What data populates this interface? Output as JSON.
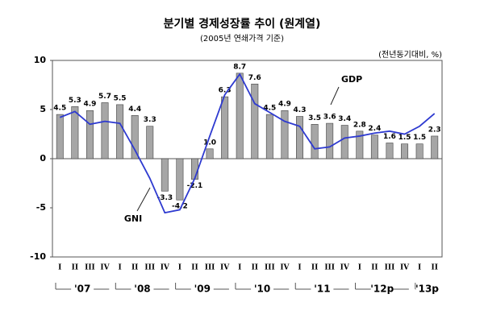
{
  "chart_data": {
    "type": "bar",
    "title": "분기별 경제성장률 추이 (원계열)",
    "subtitle": "(2005년 연쇄가격 기준)",
    "unit_label": "(전년동기대비, %)",
    "categories": [
      "I",
      "II",
      "III",
      "IV",
      "I",
      "II",
      "III",
      "IV",
      "I",
      "II",
      "III",
      "IV",
      "I",
      "II",
      "III",
      "IV",
      "I",
      "II",
      "III",
      "IV",
      "I",
      "II",
      "III",
      "IV",
      "I",
      "II"
    ],
    "groups": [
      {
        "label": "'07",
        "count": 4
      },
      {
        "label": "'08",
        "count": 4
      },
      {
        "label": "'09",
        "count": 4
      },
      {
        "label": "'10",
        "count": 4
      },
      {
        "label": "'11",
        "count": 4
      },
      {
        "label": "'12p",
        "count": 4
      },
      {
        "label": "'13p",
        "count": 2
      }
    ],
    "series": [
      {
        "name": "GDP",
        "type": "bar",
        "color": "#a6a6a6",
        "values": [
          4.5,
          5.3,
          4.9,
          5.7,
          5.5,
          4.4,
          3.3,
          -3.3,
          -4.2,
          -2.1,
          1.0,
          6.3,
          8.7,
          7.6,
          4.5,
          4.9,
          4.3,
          3.5,
          3.6,
          3.4,
          2.8,
          2.4,
          1.6,
          1.5,
          1.5,
          2.3
        ],
        "value_labels": [
          "4.5",
          "5.3",
          "4.9",
          "5.7",
          "5.5",
          "4.4",
          "3.3",
          "-3.3",
          "-4.2",
          "-2.1",
          "1.0",
          "6.3",
          "8.7",
          "7.6",
          "4.5",
          "4.9",
          "4.3",
          "3.5",
          "3.6",
          "3.4",
          "2.8",
          "2.4",
          "1.6",
          "1.5",
          "1.5",
          "2.3"
        ]
      },
      {
        "name": "GNI",
        "type": "line",
        "color": "#2e3ad0",
        "values": [
          4.2,
          4.8,
          3.5,
          3.8,
          3.6,
          0.9,
          -2.0,
          -5.5,
          -5.2,
          -2.0,
          2.3,
          6.5,
          8.6,
          5.6,
          4.7,
          3.8,
          3.3,
          1.0,
          1.2,
          2.1,
          2.3,
          2.6,
          2.8,
          2.5,
          3.3,
          4.6
        ]
      }
    ],
    "ylim": [
      -10,
      10
    ],
    "yticks": [
      -10,
      -5,
      0,
      5,
      10
    ]
  }
}
